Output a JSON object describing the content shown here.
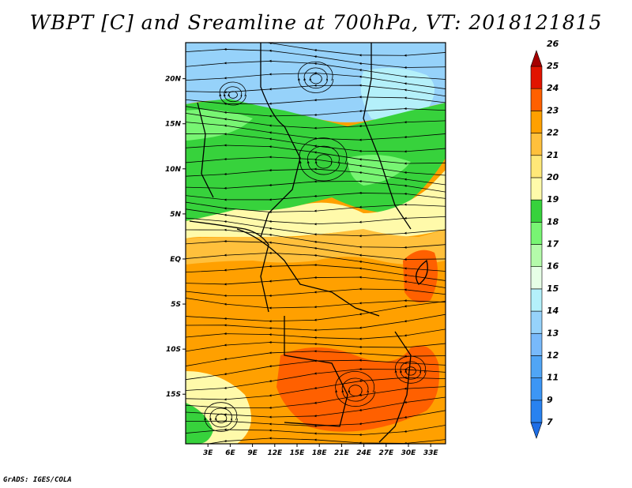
{
  "title": "WBPT [C] and Sreamline at 700hPa, VT: 2018121815",
  "credit": "GrADS: IGES/COLA",
  "map": {
    "lat_ticks": [
      "20N",
      "15N",
      "10N",
      "5N",
      "EQ",
      "5S",
      "10S",
      "15S"
    ],
    "lon_ticks": [
      "3E",
      "6E",
      "9E",
      "12E",
      "15E",
      "18E",
      "21E",
      "24E",
      "27E",
      "30E",
      "33E"
    ],
    "lat_range": [
      -20.5,
      24
    ],
    "lon_range": [
      0,
      35
    ]
  },
  "colorbar": {
    "labels": [
      "7",
      "9",
      "11",
      "12",
      "13",
      "14",
      "15",
      "16",
      "17",
      "18",
      "19",
      "20",
      "21",
      "22",
      "23",
      "24",
      "25",
      "26"
    ],
    "colors": [
      "#1e6ee6",
      "#2882f0",
      "#3c96f5",
      "#50a5f5",
      "#78b9fa",
      "#96d2fa",
      "#b4f0fa",
      "#e6ffe6",
      "#b4faaa",
      "#78f573",
      "#37d23c",
      "#fffaaa",
      "#ffe878",
      "#ffc03c",
      "#ffa000",
      "#ff6000",
      "#e11400",
      "#a50000"
    ]
  },
  "colors": {
    "blue_zone": "#96d2fa",
    "pale_zone": "#b4f0fa",
    "light_green": "#78f573",
    "green": "#37d23c",
    "yellow": "#fffaaa",
    "light_orange": "#ffc03c",
    "orange": "#ffa000",
    "red_orange": "#ff6000"
  }
}
